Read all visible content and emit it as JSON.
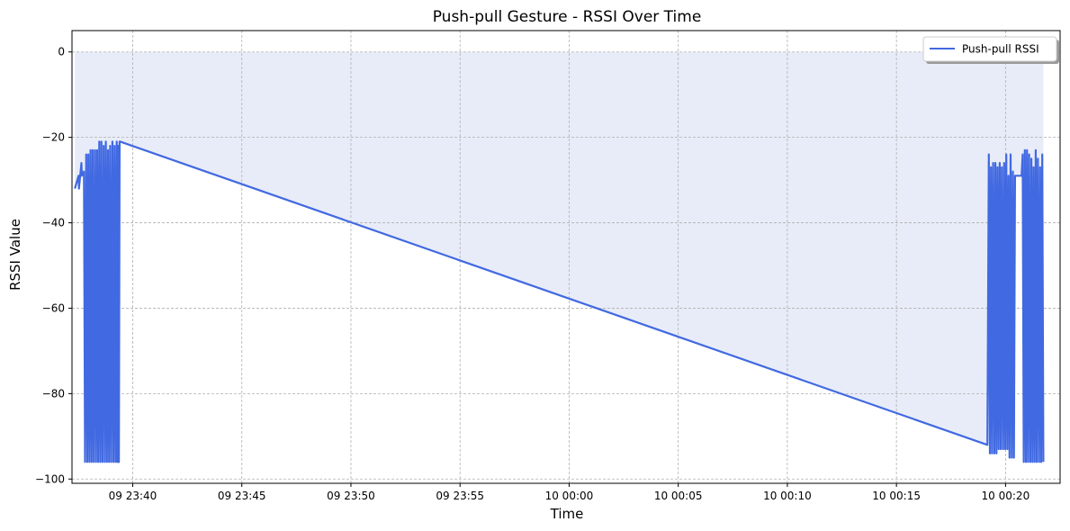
{
  "chart_data": {
    "type": "line",
    "title": "Push-pull Gesture - RSSI Over Time",
    "xlabel": "Time",
    "ylabel": "RSSI Value",
    "ylim": [
      -101,
      5
    ],
    "xlim": [
      "09 23:37:13",
      "10 00:22:30"
    ],
    "yticks": [
      0,
      -20,
      -40,
      -60,
      -80,
      -100
    ],
    "ytick_labels": [
      "0",
      "−20",
      "−40",
      "−60",
      "−80",
      "−100"
    ],
    "xticks": [
      "09 23:40:00",
      "09 23:45:00",
      "09 23:50:00",
      "09 23:55:00",
      "10 00:00:00",
      "10 00:05:00",
      "10 00:10:00",
      "10 00:15:00",
      "10 00:20:00"
    ],
    "xtick_labels": [
      "09 23:40",
      "09 23:45",
      "09 23:50",
      "09 23:55",
      "10 00:00",
      "10 00:05",
      "10 00:10",
      "10 00:15",
      "10 00:20"
    ],
    "grid": true,
    "legend_position": "top-right",
    "fill_between": {
      "from": 0,
      "color": "#e8ecf8"
    },
    "series": [
      {
        "name": "Push-pull RSSI",
        "color": "#4169e1",
        "x": [
          "09 23:37:21",
          "09 23:37:31",
          "09 23:37:32",
          "09 23:37:39",
          "09 23:37:40",
          "09 23:37:46",
          "09 23:37:49",
          "09 23:37:52",
          "09 23:37:55",
          "09 23:37:58",
          "09 23:38:01",
          "09 23:38:04",
          "09 23:38:07",
          "09 23:38:10",
          "09 23:38:13",
          "09 23:38:16",
          "09 23:38:19",
          "09 23:38:22",
          "09 23:38:25",
          "09 23:38:28",
          "09 23:38:31",
          "09 23:38:34",
          "09 23:38:37",
          "09 23:38:40",
          "09 23:38:43",
          "09 23:38:46",
          "09 23:38:49",
          "09 23:38:52",
          "09 23:38:55",
          "09 23:38:58",
          "09 23:39:01",
          "09 23:39:04",
          "09 23:39:07",
          "09 23:39:10",
          "09 23:39:13",
          "09 23:39:16",
          "09 23:39:18",
          "09 23:39:20",
          "09 23:39:22",
          "09 23:39:24",
          "09 23:39:26",
          "10 00:19:10",
          "10 00:19:14",
          "10 00:19:17",
          "10 00:19:20",
          "10 00:19:23",
          "10 00:19:26",
          "10 00:19:29",
          "10 00:19:32",
          "10 00:19:35",
          "10 00:19:38",
          "10 00:19:41",
          "10 00:19:44",
          "10 00:19:47",
          "10 00:19:50",
          "10 00:19:53",
          "10 00:19:56",
          "10 00:19:59",
          "10 00:20:02",
          "10 00:20:05",
          "10 00:20:08",
          "10 00:20:11",
          "10 00:20:14",
          "10 00:20:17",
          "10 00:20:20",
          "10 00:20:23",
          "10 00:20:26",
          "10 00:20:29",
          "10 00:20:32",
          "10 00:20:35",
          "10 00:20:38",
          "10 00:20:41",
          "10 00:20:44",
          "10 00:20:47",
          "10 00:20:50",
          "10 00:20:53",
          "10 00:20:56",
          "10 00:20:59",
          "10 00:21:02",
          "10 00:21:05",
          "10 00:21:08",
          "10 00:21:11",
          "10 00:21:14",
          "10 00:21:17",
          "10 00:21:20",
          "10 00:21:23",
          "10 00:21:26",
          "10 00:21:29",
          "10 00:21:32",
          "10 00:21:35",
          "10 00:21:38",
          "10 00:21:41",
          "10 00:21:44"
        ],
        "y": [
          -32,
          -29,
          -32,
          -26,
          -29,
          -28,
          -96,
          -24,
          -96,
          -24,
          -96,
          -23,
          -96,
          -23,
          -96,
          -23,
          -96,
          -23,
          -96,
          -21,
          -96,
          -21,
          -96,
          -22,
          -96,
          -21,
          -96,
          -23,
          -96,
          -22,
          -96,
          -21,
          -96,
          -22,
          -96,
          -21,
          -96,
          -22,
          -96,
          -21,
          -21,
          -92,
          -24,
          -94,
          -27,
          -94,
          -26,
          -94,
          -26,
          -94,
          -27,
          -93,
          -26,
          -93,
          -27,
          -93,
          -26,
          -93,
          -24,
          -93,
          -29,
          -95,
          -24,
          -95,
          -28,
          -95,
          -29,
          -29,
          -29,
          -29,
          -29,
          -29,
          -29,
          -24,
          -96,
          -23,
          -96,
          -23,
          -96,
          -24,
          -96,
          -25,
          -96,
          -27,
          -96,
          -23,
          -96,
          -25,
          -96,
          -27,
          -96,
          -24,
          -96
        ]
      }
    ]
  }
}
